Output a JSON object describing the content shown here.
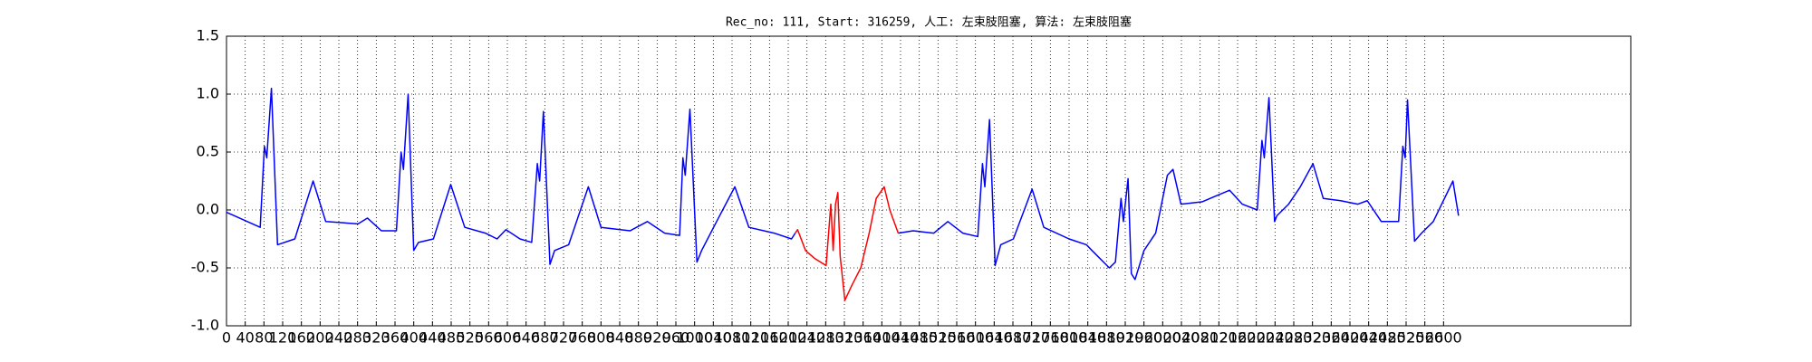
{
  "chart_data": {
    "type": "line",
    "title": "Rec_no: 111, Start: 316259, 人工: 左束肢阻塞, 算法: 左束肢阻塞",
    "x": [
      0,
      72,
      81,
      86,
      96,
      109,
      146,
      185,
      212,
      281,
      301,
      331,
      363,
      373,
      378,
      388,
      400,
      410,
      442,
      479,
      509,
      553,
      578,
      597,
      627,
      652,
      664,
      669,
      677,
      691,
      701,
      731,
      773,
      800,
      862,
      899,
      936,
      968,
      975,
      980,
      990,
      1005,
      1015,
      1047,
      1086,
      1116,
      1170,
      1207,
      1215,
      1220,
      1237,
      1257,
      1281,
      1291,
      1296,
      1301,
      1306,
      1311,
      1321,
      1336,
      1355,
      1373,
      1388,
      1405,
      1417,
      1435,
      1467,
      1511,
      1541,
      1573,
      1605,
      1615,
      1620,
      1630,
      1642,
      1654,
      1681,
      1721,
      1746,
      1800,
      1837,
      1849,
      1886,
      1899,
      1911,
      1916,
      1926,
      1933,
      1941,
      1960,
      1985,
      2010,
      2022,
      2039,
      2084,
      2113,
      2143,
      2170,
      2202,
      2212,
      2217,
      2227,
      2239,
      2244,
      2269,
      2294,
      2321,
      2343,
      2380,
      2417,
      2437,
      2467,
      2504,
      2513,
      2518,
      2523,
      2538,
      2553,
      2578,
      2620,
      2632
    ],
    "series": [
      {
        "color": "#0000ff",
        "values": [
          -0.02,
          -0.15,
          0.55,
          0.45,
          1.05,
          -0.3,
          -0.25,
          0.25,
          -0.1,
          -0.12,
          -0.07,
          -0.18,
          -0.18,
          0.5,
          0.35,
          1.0,
          -0.35,
          -0.28,
          -0.25,
          0.22,
          -0.15,
          -0.2,
          -0.25,
          -0.17,
          -0.25,
          -0.28,
          0.4,
          0.25,
          0.85,
          -0.47,
          -0.35,
          -0.3,
          0.2,
          -0.15,
          -0.18,
          -0.1,
          -0.2,
          -0.22,
          0.45,
          0.3,
          0.87,
          -0.45,
          -0.35,
          -0.1,
          0.2,
          -0.15,
          -0.2,
          -0.25,
          -0.2,
          null,
          null,
          null,
          null,
          null,
          null,
          null,
          null,
          null,
          null,
          null,
          null,
          null,
          null,
          null,
          null,
          -0.2,
          -0.18,
          -0.2,
          -0.1,
          -0.2,
          -0.23,
          0.4,
          0.2,
          0.78,
          -0.48,
          -0.3,
          -0.25,
          0.18,
          -0.15,
          -0.25,
          -0.3,
          -0.35,
          -0.5,
          -0.45,
          0.1,
          -0.1,
          0.27,
          -0.55,
          -0.6,
          -0.35,
          -0.2,
          0.3,
          0.35,
          0.05,
          0.07,
          0.12,
          0.17,
          0.05,
          0.0,
          0.6,
          0.45,
          0.97,
          -0.1,
          -0.05,
          0.05,
          0.2,
          0.4,
          0.1,
          0.08,
          0.05,
          0.08,
          -0.1,
          -0.1,
          0.55,
          0.45,
          0.95,
          -0.27,
          -0.2,
          -0.1,
          0.25,
          -0.05
        ]
      },
      {
        "color": "#ff0000",
        "values": [
          null,
          null,
          null,
          null,
          null,
          null,
          null,
          null,
          null,
          null,
          null,
          null,
          null,
          null,
          null,
          null,
          null,
          null,
          null,
          null,
          null,
          null,
          null,
          null,
          null,
          null,
          null,
          null,
          null,
          null,
          null,
          null,
          null,
          null,
          null,
          null,
          null,
          null,
          null,
          null,
          null,
          null,
          null,
          null,
          null,
          null,
          null,
          null,
          -0.2,
          -0.17,
          -0.35,
          -0.42,
          -0.48,
          0.05,
          -0.35,
          0.05,
          0.15,
          -0.4,
          -0.78,
          -0.65,
          -0.5,
          -0.2,
          0.1,
          0.2,
          0.0,
          -0.2,
          null,
          null,
          null,
          null,
          null,
          null,
          null,
          null,
          null,
          null,
          null,
          null,
          null,
          null,
          null,
          null,
          null,
          null,
          null,
          null,
          null,
          null,
          null,
          null,
          null,
          null,
          null,
          null,
          null,
          null,
          null,
          null,
          null,
          null,
          null,
          null,
          null,
          null,
          null,
          null,
          null,
          null,
          null,
          null,
          null,
          null,
          null,
          null,
          null,
          null,
          null,
          null,
          null,
          null,
          null
        ]
      }
    ],
    "xlim": [
      0,
      3000
    ],
    "xticks": [
      0,
      40,
      80,
      120,
      160,
      200,
      240,
      280,
      320,
      360,
      400,
      440,
      480,
      520,
      560,
      600,
      640,
      680,
      720,
      760,
      800,
      840,
      880,
      920,
      960,
      1000,
      1040,
      1080,
      1120,
      1160,
      1200,
      1240,
      1280,
      1320,
      1360,
      1400,
      1440,
      1480,
      1520,
      1560,
      1600,
      1640,
      1680,
      1720,
      1760,
      1800,
      1840,
      1880,
      1920,
      1960,
      2000,
      2040,
      2080,
      2120,
      2160,
      2200,
      2240,
      2280,
      2320,
      2360,
      2400,
      2440,
      2480,
      2520,
      2560,
      2600
    ],
    "ylim": [
      -1,
      1.5
    ],
    "yticks": [
      {
        "value": -1,
        "label": "-1.0"
      },
      -0.5,
      {
        "value": 0,
        "label": "0.0"
      },
      0.5,
      {
        "value": 1,
        "label": "1.0"
      },
      1.5
    ],
    "grid": true
  }
}
